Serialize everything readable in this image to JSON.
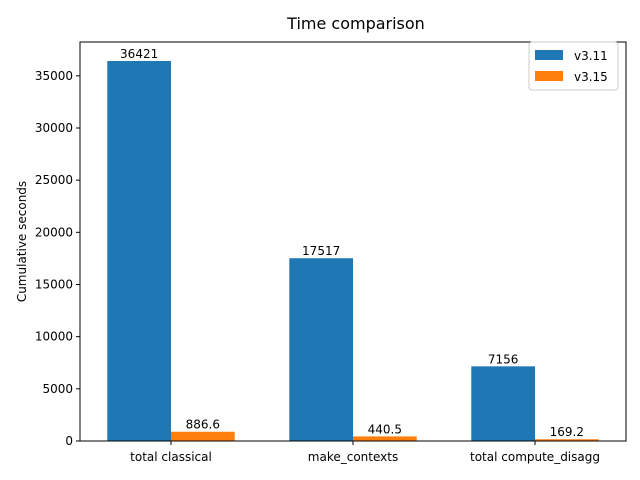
{
  "chart_data": {
    "type": "bar",
    "title": "Time comparison",
    "xlabel": "",
    "ylabel": "Cumulative seconds",
    "categories": [
      "total classical",
      "make_contexts",
      "total compute_disagg"
    ],
    "series": [
      {
        "name": "v3.11",
        "color": "#1f77b4",
        "values": [
          36421,
          17517,
          7156
        ],
        "labels": [
          "36421",
          "17517",
          "7156"
        ]
      },
      {
        "name": "v3.15",
        "color": "#ff7f0e",
        "values": [
          886.6,
          440.5,
          169.2
        ],
        "labels": [
          "886.6",
          "440.5",
          "169.2"
        ]
      }
    ],
    "ylim": [
      0,
      38242
    ],
    "yticks": [
      0,
      5000,
      10000,
      15000,
      20000,
      25000,
      30000,
      35000
    ],
    "ytick_labels": [
      "0",
      "5000",
      "10000",
      "15000",
      "20000",
      "25000",
      "30000",
      "35000"
    ],
    "grid": false,
    "legend_position": "upper right"
  }
}
